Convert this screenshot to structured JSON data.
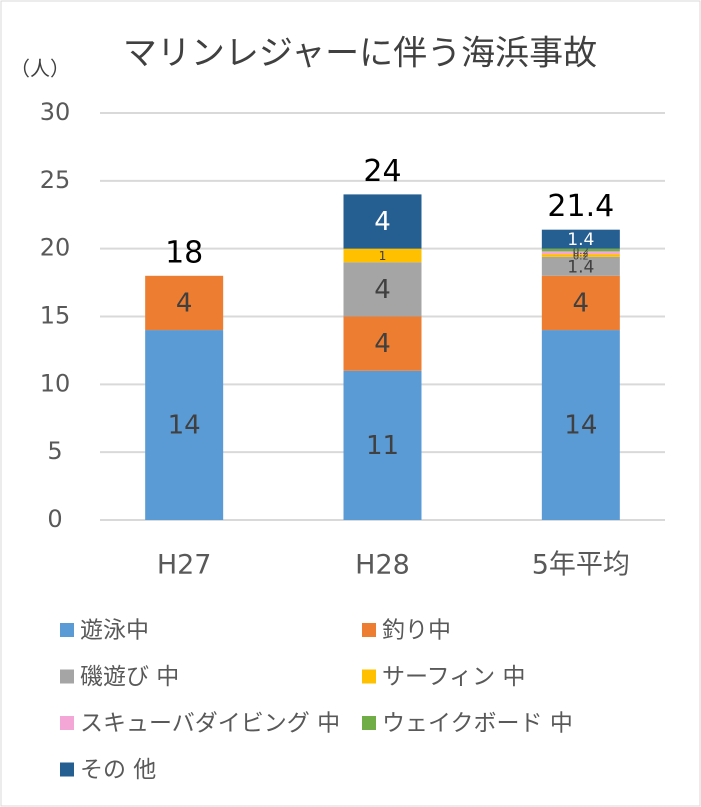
{
  "chart_data": {
    "type": "stacked-bar",
    "title": "マリンレジャーに伴う海浜事故",
    "y_label": "（人）",
    "categories": [
      "H27",
      "H28",
      "5年平均"
    ],
    "series": [
      {
        "name": "遊泳中",
        "color": "#5b9bd5",
        "label_color": "#404040",
        "values": [
          14,
          11,
          14
        ]
      },
      {
        "name": "釣り中",
        "color": "#ed7d31",
        "label_color": "#404040",
        "values": [
          4,
          4,
          4
        ]
      },
      {
        "name": "磯遊び 中",
        "color": "#a5a5a5",
        "label_color": "#404040",
        "values": [
          null,
          4,
          1.4
        ]
      },
      {
        "name": "サーフィン 中",
        "color": "#ffc000",
        "label_color": "#404040",
        "values": [
          null,
          1,
          0.2
        ]
      },
      {
        "name": "スキューバダイビング 中",
        "color": "#f4a6d7",
        "label_color": "#404040",
        "values": [
          null,
          null,
          0.2
        ]
      },
      {
        "name": "ウェイクボード 中",
        "color": "#70ad47",
        "label_color": "#404040",
        "values": [
          null,
          null,
          0.2
        ]
      },
      {
        "name": "その 他",
        "color": "#255e91",
        "label_color": "#ffffff",
        "values": [
          null,
          4,
          1.4
        ]
      }
    ],
    "totals": [
      18,
      24,
      21.4
    ],
    "ylim": [
      0,
      30
    ],
    "yticks": [
      0,
      5,
      10,
      15,
      20,
      25,
      30
    ],
    "grid": true
  }
}
